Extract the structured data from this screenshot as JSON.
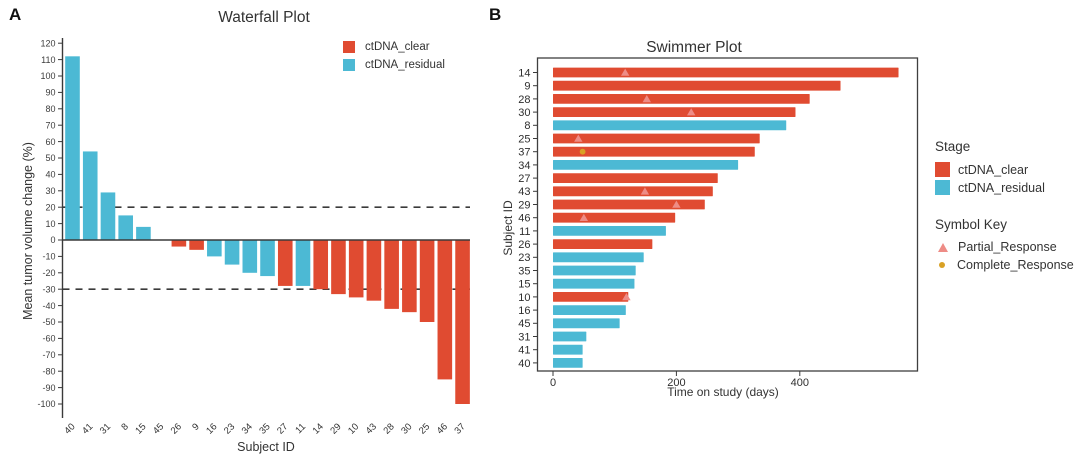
{
  "figure": {
    "panel_a_label": "A",
    "panel_b_label": "B"
  },
  "colors": {
    "ctdna_clear": "#e04b31",
    "ctdna_residual": "#4cb9d4",
    "partial_response": "#ee8c86",
    "complete_response": "#d9a125",
    "axis": "#3a3a3a",
    "text": "#333333"
  },
  "chart_data": [
    {
      "id": "waterfall",
      "type": "bar",
      "panel_label": "A",
      "title": "Waterfall Plot",
      "xlabel": "Subject ID",
      "ylabel": "Mean tumor volume change (%)",
      "ylim": [
        -100,
        120
      ],
      "ytick_step": 10,
      "grid": false,
      "reference_lines": [
        20,
        -30
      ],
      "legend_position": "top-right-inside",
      "legend": [
        {
          "label": "ctDNA_clear",
          "color": "#e04b31"
        },
        {
          "label": "ctDNA_residual",
          "color": "#4cb9d4"
        }
      ],
      "categories": [
        "40",
        "41",
        "31",
        "8",
        "15",
        "45",
        "26",
        "9",
        "16",
        "23",
        "34",
        "35",
        "27",
        "11",
        "14",
        "29",
        "10",
        "43",
        "28",
        "30",
        "25",
        "46",
        "37"
      ],
      "values": [
        112,
        54,
        29,
        15,
        8,
        0,
        -4,
        -6,
        -10,
        -15,
        -20,
        -22,
        -28,
        -28,
        -30,
        -33,
        -35,
        -37,
        -42,
        -44,
        -50,
        -85,
        -100
      ],
      "bar_stages": [
        "ctDNA_residual",
        "ctDNA_residual",
        "ctDNA_residual",
        "ctDNA_residual",
        "ctDNA_residual",
        "ctDNA_residual",
        "ctDNA_clear",
        "ctDNA_clear",
        "ctDNA_residual",
        "ctDNA_residual",
        "ctDNA_residual",
        "ctDNA_residual",
        "ctDNA_clear",
        "ctDNA_residual",
        "ctDNA_clear",
        "ctDNA_clear",
        "ctDNA_clear",
        "ctDNA_clear",
        "ctDNA_clear",
        "ctDNA_clear",
        "ctDNA_clear",
        "ctDNA_clear",
        "ctDNA_clear"
      ]
    },
    {
      "id": "swimmer",
      "type": "bar-horizontal",
      "panel_label": "B",
      "title": "Swimmer Plot",
      "xlabel": "Time on study (days)",
      "ylabel": "Subject ID",
      "xlim": [
        0,
        590
      ],
      "xticks": [
        0,
        200,
        400
      ],
      "grid": false,
      "legend_title": "Stage",
      "legend": [
        {
          "label": "ctDNA_clear",
          "color": "#e04b31"
        },
        {
          "label": "ctDNA_residual",
          "color": "#4cb9d4"
        }
      ],
      "symbol_key_title": "Symbol Key",
      "symbols": [
        {
          "label": "Partial_Response",
          "shape": "triangle",
          "color": "#ee8c86"
        },
        {
          "label": "Complete_Response",
          "shape": "dot",
          "color": "#d9a125"
        }
      ],
      "subjects": [
        "14",
        "9",
        "28",
        "30",
        "8",
        "25",
        "37",
        "34",
        "27",
        "43",
        "29",
        "46",
        "11",
        "26",
        "23",
        "35",
        "15",
        "10",
        "16",
        "45",
        "31",
        "41",
        "40"
      ],
      "days": [
        560,
        466,
        416,
        393,
        378,
        335,
        327,
        300,
        267,
        259,
        246,
        198,
        183,
        161,
        147,
        134,
        132,
        122,
        118,
        108,
        54,
        48,
        48
      ],
      "stage": [
        "ctDNA_clear",
        "ctDNA_clear",
        "ctDNA_clear",
        "ctDNA_clear",
        "ctDNA_residual",
        "ctDNA_clear",
        "ctDNA_clear",
        "ctDNA_residual",
        "ctDNA_clear",
        "ctDNA_clear",
        "ctDNA_clear",
        "ctDNA_clear",
        "ctDNA_residual",
        "ctDNA_clear",
        "ctDNA_residual",
        "ctDNA_residual",
        "ctDNA_residual",
        "ctDNA_clear",
        "ctDNA_residual",
        "ctDNA_residual",
        "ctDNA_residual",
        "ctDNA_residual",
        "ctDNA_residual"
      ],
      "markers": [
        {
          "subject": "14",
          "type": "Partial_Response",
          "day": 117
        },
        {
          "subject": "28",
          "type": "Partial_Response",
          "day": 152
        },
        {
          "subject": "30",
          "type": "Partial_Response",
          "day": 224
        },
        {
          "subject": "25",
          "type": "Partial_Response",
          "day": 41
        },
        {
          "subject": "37",
          "type": "Complete_Response",
          "day": 48
        },
        {
          "subject": "43",
          "type": "Partial_Response",
          "day": 149
        },
        {
          "subject": "29",
          "type": "Partial_Response",
          "day": 200
        },
        {
          "subject": "46",
          "type": "Partial_Response",
          "day": 50
        },
        {
          "subject": "10",
          "type": "Partial_Response",
          "day": 119
        }
      ]
    }
  ]
}
